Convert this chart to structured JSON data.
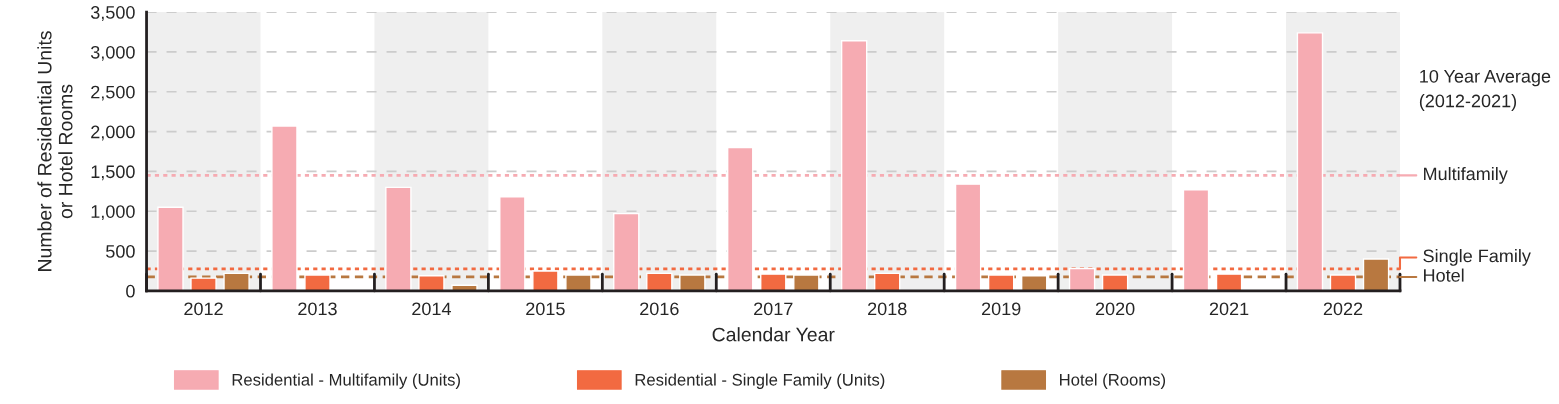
{
  "chart_data": {
    "type": "bar",
    "xlabel": "Calendar Year",
    "ylabel": "Number of Residential Units\nor Hotel Rooms",
    "categories": [
      "2012",
      "2013",
      "2014",
      "2015",
      "2016",
      "2017",
      "2018",
      "2019",
      "2020",
      "2021",
      "2022"
    ],
    "series": [
      {
        "name": "Residential - Multifamily (Units)",
        "color": "#f6abb2",
        "values": [
          1050,
          2070,
          1300,
          1180,
          970,
          1800,
          3140,
          1340,
          280,
          1270,
          3240
        ]
      },
      {
        "name": "Residential - Single Family (Units)",
        "color": "#f26a41",
        "values": [
          160,
          200,
          190,
          250,
          220,
          210,
          220,
          200,
          200,
          210,
          200
        ]
      },
      {
        "name": "Hotel (Rooms)",
        "color": "#b87840",
        "values": [
          220,
          null,
          70,
          200,
          200,
          200,
          null,
          190,
          null,
          null,
          400
        ]
      }
    ],
    "ylim": [
      0,
      3500
    ],
    "yticks": [
      0,
      {
        "value": 500,
        "label": "500"
      },
      {
        "value": 1000,
        "label": "1,000"
      },
      {
        "value": 1500,
        "label": "1,500"
      },
      {
        "value": 2000,
        "label": "2,000"
      },
      {
        "value": 2500,
        "label": "2,500"
      },
      {
        "value": 3000,
        "label": "3,000"
      },
      {
        "value": 3500,
        "label": "3,500"
      }
    ],
    "grid": "y",
    "legend": "bottom",
    "ref_lines": [
      {
        "axis": "y",
        "value": 1450,
        "label": "Multifamily",
        "color": "#f6abb2",
        "line_style": "dotted"
      },
      {
        "axis": "y",
        "value": 275,
        "label": "Single Family",
        "color": "#f26a41",
        "line_style": "dotted"
      },
      {
        "axis": "y",
        "value": 175,
        "label": "Hotel",
        "color": "#b87840",
        "line_style": "dashed"
      }
    ],
    "bands": [
      {
        "axis": "x",
        "from": "2012",
        "to": "2012",
        "color": "#efefef"
      },
      {
        "axis": "x",
        "from": "2014",
        "to": "2014",
        "color": "#efefef"
      },
      {
        "axis": "x",
        "from": "2016",
        "to": "2016",
        "color": "#efefef"
      },
      {
        "axis": "x",
        "from": "2018",
        "to": "2018",
        "color": "#efefef"
      },
      {
        "axis": "x",
        "from": "2020",
        "to": "2020",
        "color": "#efefef"
      },
      {
        "axis": "x",
        "from": "2022",
        "to": "2022",
        "color": "#efefef"
      }
    ],
    "annotations": [
      "10 Year Average\n(2012-2021)"
    ]
  }
}
